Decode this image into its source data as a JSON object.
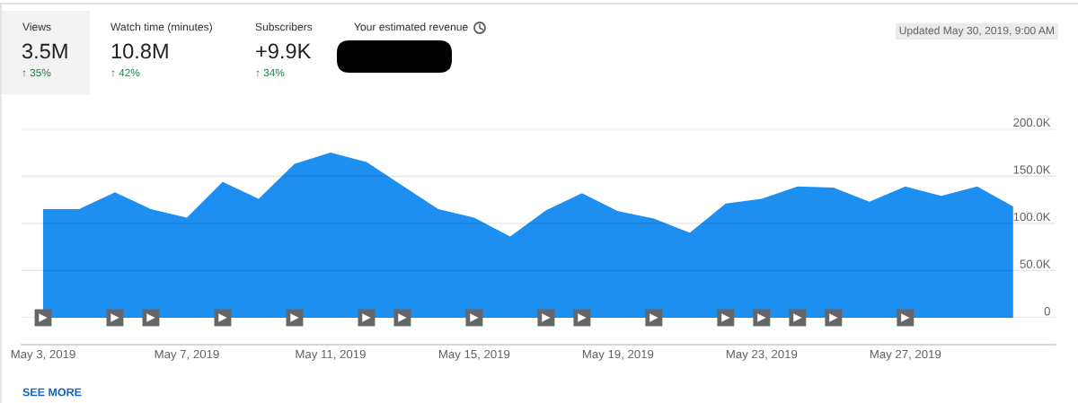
{
  "chart_data": {
    "type": "area",
    "x": [
      "2019-05-03",
      "2019-05-04",
      "2019-05-05",
      "2019-05-06",
      "2019-05-07",
      "2019-05-08",
      "2019-05-09",
      "2019-05-10",
      "2019-05-11",
      "2019-05-12",
      "2019-05-13",
      "2019-05-14",
      "2019-05-15",
      "2019-05-16",
      "2019-05-17",
      "2019-05-18",
      "2019-05-19",
      "2019-05-20",
      "2019-05-21",
      "2019-05-22",
      "2019-05-23",
      "2019-05-24",
      "2019-05-25",
      "2019-05-26",
      "2019-05-27",
      "2019-05-28",
      "2019-05-29",
      "2019-05-30"
    ],
    "series": [
      {
        "color": "#1c8ff0",
        "values": [
          115,
          115,
          133,
          115,
          106,
          144,
          126,
          163,
          175,
          165,
          140,
          115,
          106,
          86,
          114,
          132,
          113,
          105,
          90,
          121,
          126,
          139,
          138,
          123,
          139,
          129,
          139,
          118
        ]
      },
      {
        "type": "scatter",
        "marker": "square",
        "color": "#666666",
        "x": [
          "2019-05-03",
          "2019-05-05",
          "2019-05-06",
          "2019-05-08",
          "2019-05-10",
          "2019-05-12",
          "2019-05-13",
          "2019-05-15",
          "2019-05-17",
          "2019-05-18",
          "2019-05-20",
          "2019-05-22",
          "2019-05-23",
          "2019-05-24",
          "2019-05-25",
          "2019-05-27"
        ],
        "values": [
          0,
          0,
          0,
          0,
          0,
          0,
          0,
          0,
          0,
          0,
          0,
          0,
          0,
          0,
          0,
          0
        ]
      }
    ],
    "xlim": [
      "2019-05-02T09:36",
      "2019-05-31T04:20"
    ],
    "xticks": [
      {
        "value": "2019-05-03",
        "label": "May 3, 2019"
      },
      {
        "value": "2019-05-07",
        "label": "May 7, 2019"
      },
      {
        "value": "2019-05-11",
        "label": "May 11, 2019"
      },
      {
        "value": "2019-05-15",
        "label": "May 15, 2019"
      },
      {
        "value": "2019-05-19",
        "label": "May 19, 2019"
      },
      {
        "value": "2019-05-23",
        "label": "May 23, 2019"
      },
      {
        "value": "2019-05-27",
        "label": "May 27, 2019"
      }
    ],
    "ylim": [
      0,
      200
    ],
    "yticks": [
      0,
      {
        "value": 50,
        "label": "50.0K"
      },
      {
        "value": 100,
        "label": "100.0K"
      },
      {
        "value": 150,
        "label": "150.0K"
      },
      {
        "value": 200,
        "label": "200.0K"
      }
    ],
    "grid": "y",
    "annotations": [
      "Views",
      "3.5M",
      "↑ 35%",
      "Watch time (minutes)",
      "10.8M",
      "↑ 42%",
      "Subscribers",
      "+9.9K",
      "↑ 34%",
      "Your estimated revenue",
      "Updated May 30, 2019, 9:00 AM",
      "SEE MORE"
    ]
  }
}
